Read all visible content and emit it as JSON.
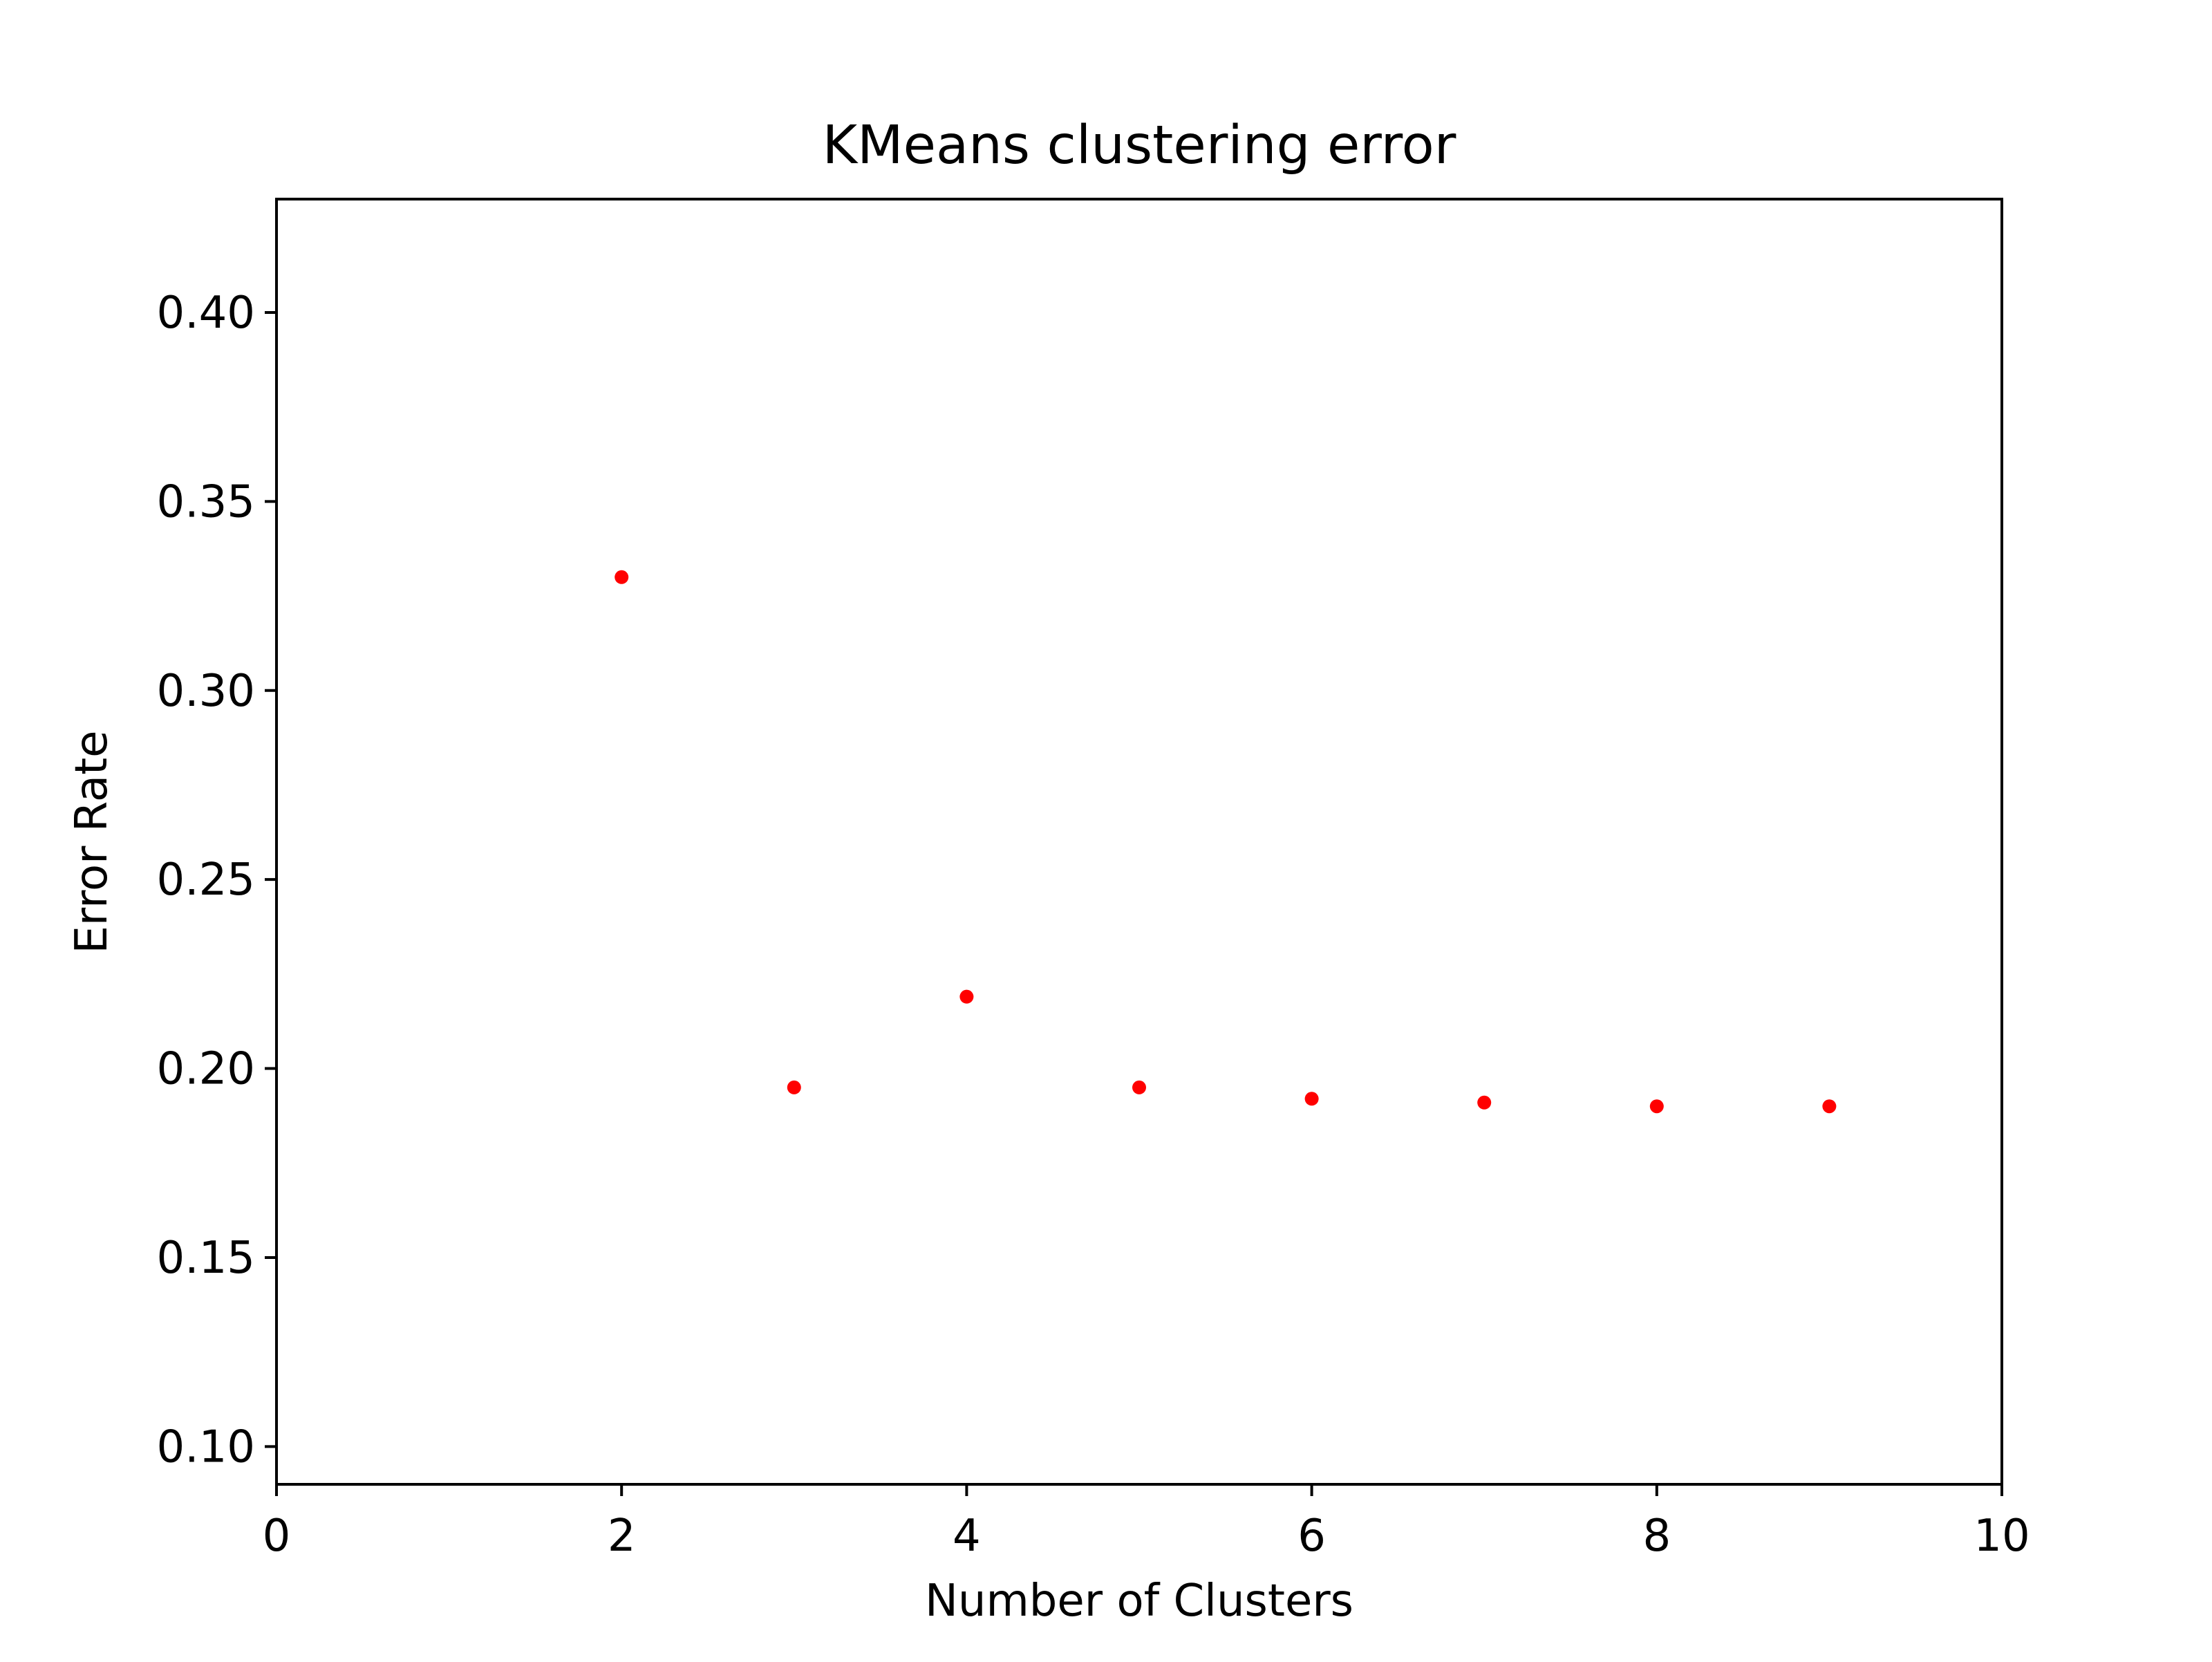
{
  "chart_data": {
    "type": "scatter",
    "title": "KMeans clustering error",
    "xlabel": "Number of Clusters",
    "ylabel": "Error Rate",
    "xlim": [
      0,
      10
    ],
    "ylim": [
      0.09,
      0.43
    ],
    "xticks": [
      0,
      2,
      4,
      6,
      8,
      10
    ],
    "xtick_labels": [
      "0",
      "2",
      "4",
      "6",
      "8",
      "10"
    ],
    "yticks": [
      0.1,
      0.15,
      0.2,
      0.25,
      0.3,
      0.35,
      0.4
    ],
    "ytick_labels": [
      "0.10",
      "0.15",
      "0.20",
      "0.25",
      "0.30",
      "0.35",
      "0.40"
    ],
    "grid": false,
    "series": [
      {
        "color": "#ff0000",
        "x": [
          2,
          3,
          4,
          5,
          6,
          7,
          8,
          9
        ],
        "y": [
          0.33,
          0.195,
          0.219,
          0.195,
          0.192,
          0.191,
          0.19,
          0.19
        ]
      }
    ]
  }
}
